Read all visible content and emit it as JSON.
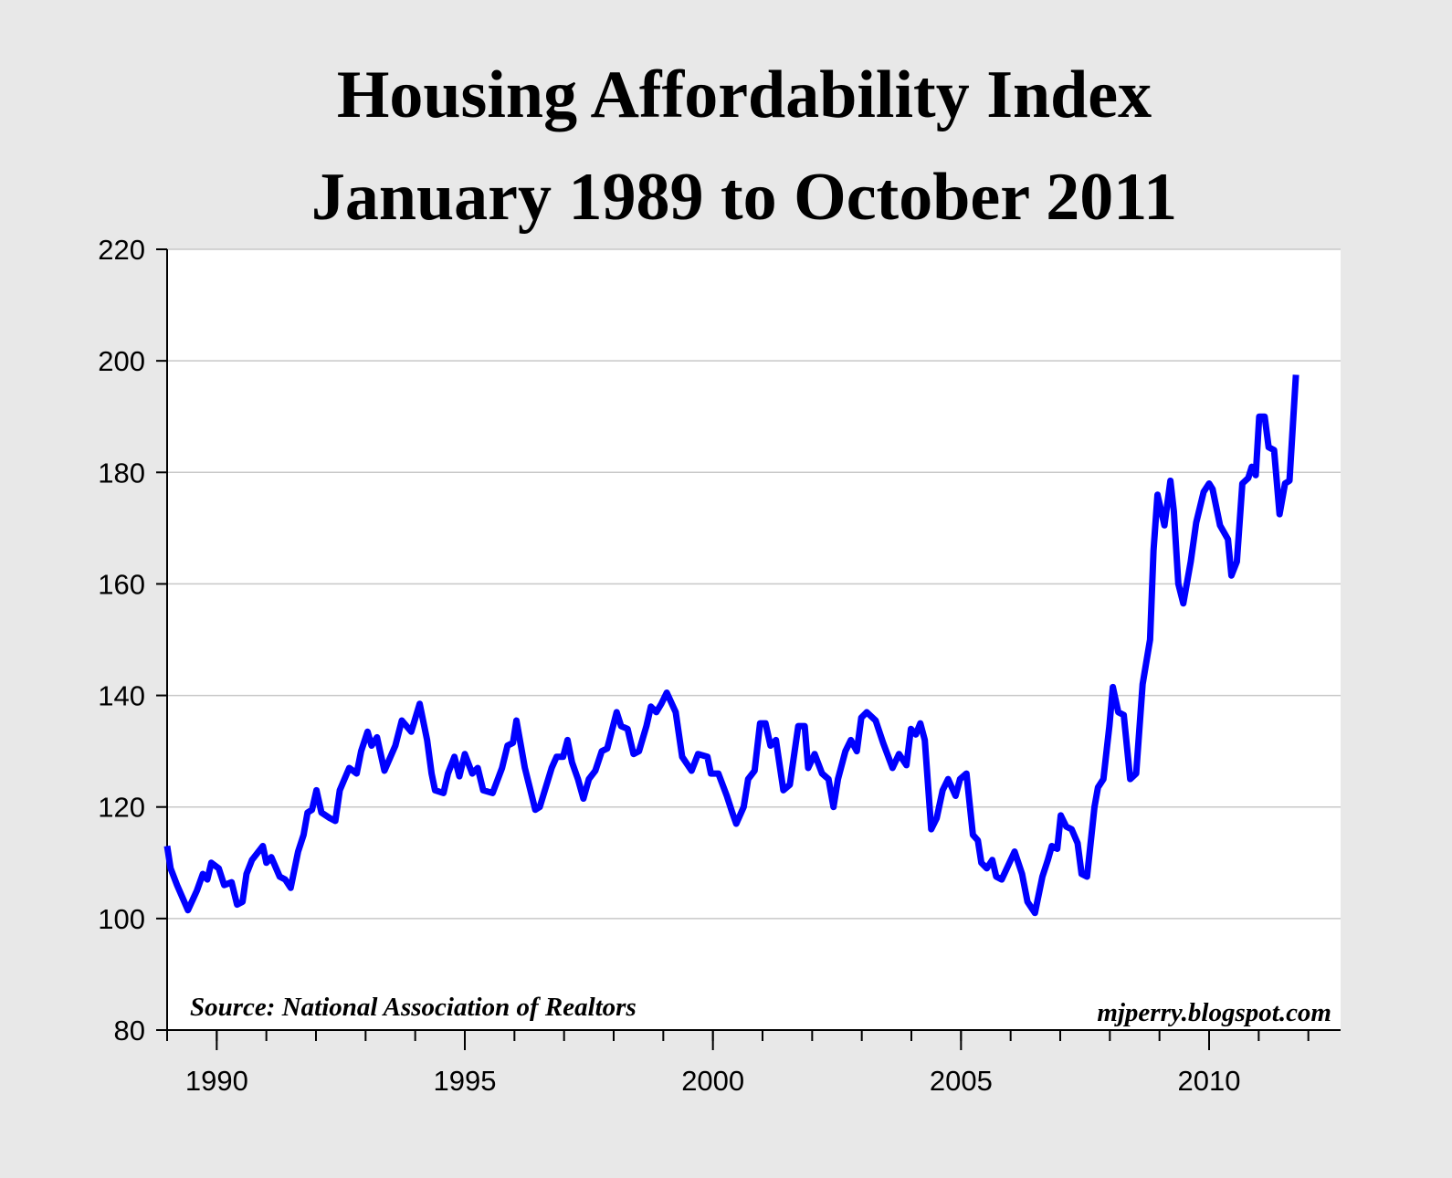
{
  "chart_data": {
    "type": "line",
    "title": [
      "Housing Affordability Index",
      "January 1989 to October 2011"
    ],
    "annotations": [
      "Source: National Association of Realtors",
      "mjperry.blogspot.com"
    ],
    "xlim": [
      1989,
      2012.65
    ],
    "ylim": [
      80,
      220
    ],
    "xticks": [
      1990,
      1995,
      2000,
      2005,
      2010
    ],
    "xminorticks": [
      1989,
      1990,
      1991,
      1992,
      1993,
      1994,
      1995,
      1996,
      1997,
      1998,
      1999,
      2000,
      2001,
      2002,
      2003,
      2004,
      2005,
      2006,
      2007,
      2008,
      2009,
      2010,
      2011,
      2012
    ],
    "yticks": [
      80,
      100,
      120,
      140,
      160,
      180,
      200,
      220
    ],
    "grid": true,
    "x": [
      1989.0,
      1989.07,
      1989.2,
      1989.42,
      1989.6,
      1989.72,
      1989.81,
      1989.89,
      1990.04,
      1990.15,
      1990.3,
      1990.41,
      1990.52,
      1990.6,
      1990.71,
      1990.93,
      1991.0,
      1991.1,
      1991.27,
      1991.38,
      1991.49,
      1991.64,
      1991.75,
      1991.83,
      1991.92,
      1992.01,
      1992.11,
      1992.28,
      1992.39,
      1992.48,
      1992.67,
      1992.82,
      1992.91,
      1993.04,
      1993.12,
      1993.23,
      1993.38,
      1993.6,
      1993.73,
      1993.92,
      1994.09,
      1994.24,
      1994.33,
      1994.4,
      1994.57,
      1994.66,
      1994.79,
      1994.89,
      1995.0,
      1995.15,
      1995.26,
      1995.37,
      1995.56,
      1995.75,
      1995.86,
      1995.97,
      1996.04,
      1996.21,
      1996.42,
      1996.51,
      1996.75,
      1996.85,
      1996.98,
      1997.07,
      1997.16,
      1997.28,
      1997.39,
      1997.5,
      1997.63,
      1997.76,
      1997.87,
      1998.06,
      1998.15,
      1998.28,
      1998.4,
      1998.51,
      1998.66,
      1998.75,
      1998.86,
      1998.96,
      1999.07,
      1999.25,
      1999.38,
      1999.57,
      1999.7,
      1999.89,
      1999.96,
      2000.11,
      2000.28,
      2000.39,
      2000.47,
      2000.62,
      2000.71,
      2000.84,
      2000.95,
      2001.06,
      2001.16,
      2001.27,
      2001.42,
      2001.55,
      2001.72,
      2001.85,
      2001.92,
      2002.05,
      2002.2,
      2002.33,
      2002.43,
      2002.52,
      2002.67,
      2002.78,
      2002.9,
      2002.99,
      2003.1,
      2003.28,
      2003.43,
      2003.62,
      2003.75,
      2003.9,
      2003.99,
      2004.09,
      2004.18,
      2004.27,
      2004.4,
      2004.51,
      2004.63,
      2004.74,
      2004.89,
      2004.98,
      2005.11,
      2005.24,
      2005.34,
      2005.41,
      2005.52,
      2005.63,
      2005.71,
      2005.82,
      2006.08,
      2006.23,
      2006.34,
      2006.49,
      2006.64,
      2006.75,
      2006.83,
      2006.94,
      2007.01,
      2007.12,
      2007.23,
      2007.35,
      2007.43,
      2007.54,
      2007.69,
      2007.76,
      2007.87,
      2007.99,
      2008.06,
      2008.17,
      2008.28,
      2008.41,
      2008.53,
      2008.66,
      2008.81,
      2008.88,
      2008.96,
      2009.1,
      2009.22,
      2009.29,
      2009.38,
      2009.48,
      2009.63,
      2009.74,
      2009.89,
      2010.0,
      2010.07,
      2010.22,
      2010.38,
      2010.45,
      2010.56,
      2010.67,
      2010.79,
      2010.86,
      2010.94,
      2011.01,
      2011.12,
      2011.2,
      2011.31,
      2011.42,
      2011.53,
      2011.62,
      2011.75
    ],
    "series": [
      {
        "color": "#0000ff",
        "values": [
          113,
          109,
          106,
          101.5,
          105,
          108,
          107,
          110,
          109,
          106,
          106.5,
          102.5,
          103,
          108,
          110.5,
          113,
          110,
          111,
          107.5,
          107,
          105.5,
          112,
          115,
          119,
          119.5,
          123,
          119,
          118,
          117.5,
          123,
          127,
          126,
          130,
          133.5,
          131,
          132.5,
          126.5,
          131,
          135.5,
          133.5,
          138.5,
          132,
          126,
          123,
          122.5,
          126,
          129,
          125.5,
          129.5,
          126,
          127,
          123,
          122.5,
          127,
          131,
          131.5,
          135.5,
          127,
          119.5,
          120,
          127,
          129,
          129,
          132,
          128,
          125,
          121.5,
          125,
          126.5,
          130,
          130.5,
          137,
          134.5,
          134,
          129.5,
          130,
          134.5,
          138,
          137,
          138.5,
          140.5,
          137,
          129,
          126.5,
          129.5,
          129,
          126,
          126,
          122,
          119,
          117,
          120,
          125,
          126.5,
          135,
          135,
          131,
          132,
          123,
          124,
          134.5,
          134.5,
          127,
          129.5,
          126,
          125,
          120,
          125,
          130,
          132,
          130,
          136,
          137,
          135.5,
          131.5,
          127,
          129.5,
          127.5,
          134,
          133,
          135,
          132,
          116,
          118,
          123,
          125,
          122,
          125,
          126,
          115,
          114,
          110,
          109,
          110.5,
          107.5,
          107,
          112,
          108,
          103,
          101,
          107.5,
          110.5,
          113,
          112.5,
          118.5,
          116.5,
          116,
          113.5,
          108,
          107.5,
          120,
          123.5,
          125,
          134.5,
          141.5,
          137,
          136.5,
          125,
          126,
          142,
          150,
          166,
          176,
          170.5,
          178.5,
          173,
          160,
          156.5,
          164,
          171,
          176.5,
          178,
          177,
          170.5,
          168,
          161.5,
          164,
          178,
          179,
          181,
          179.5,
          190,
          190,
          184.5,
          184,
          172.5,
          178,
          178.5,
          197.5
        ]
      }
    ]
  }
}
